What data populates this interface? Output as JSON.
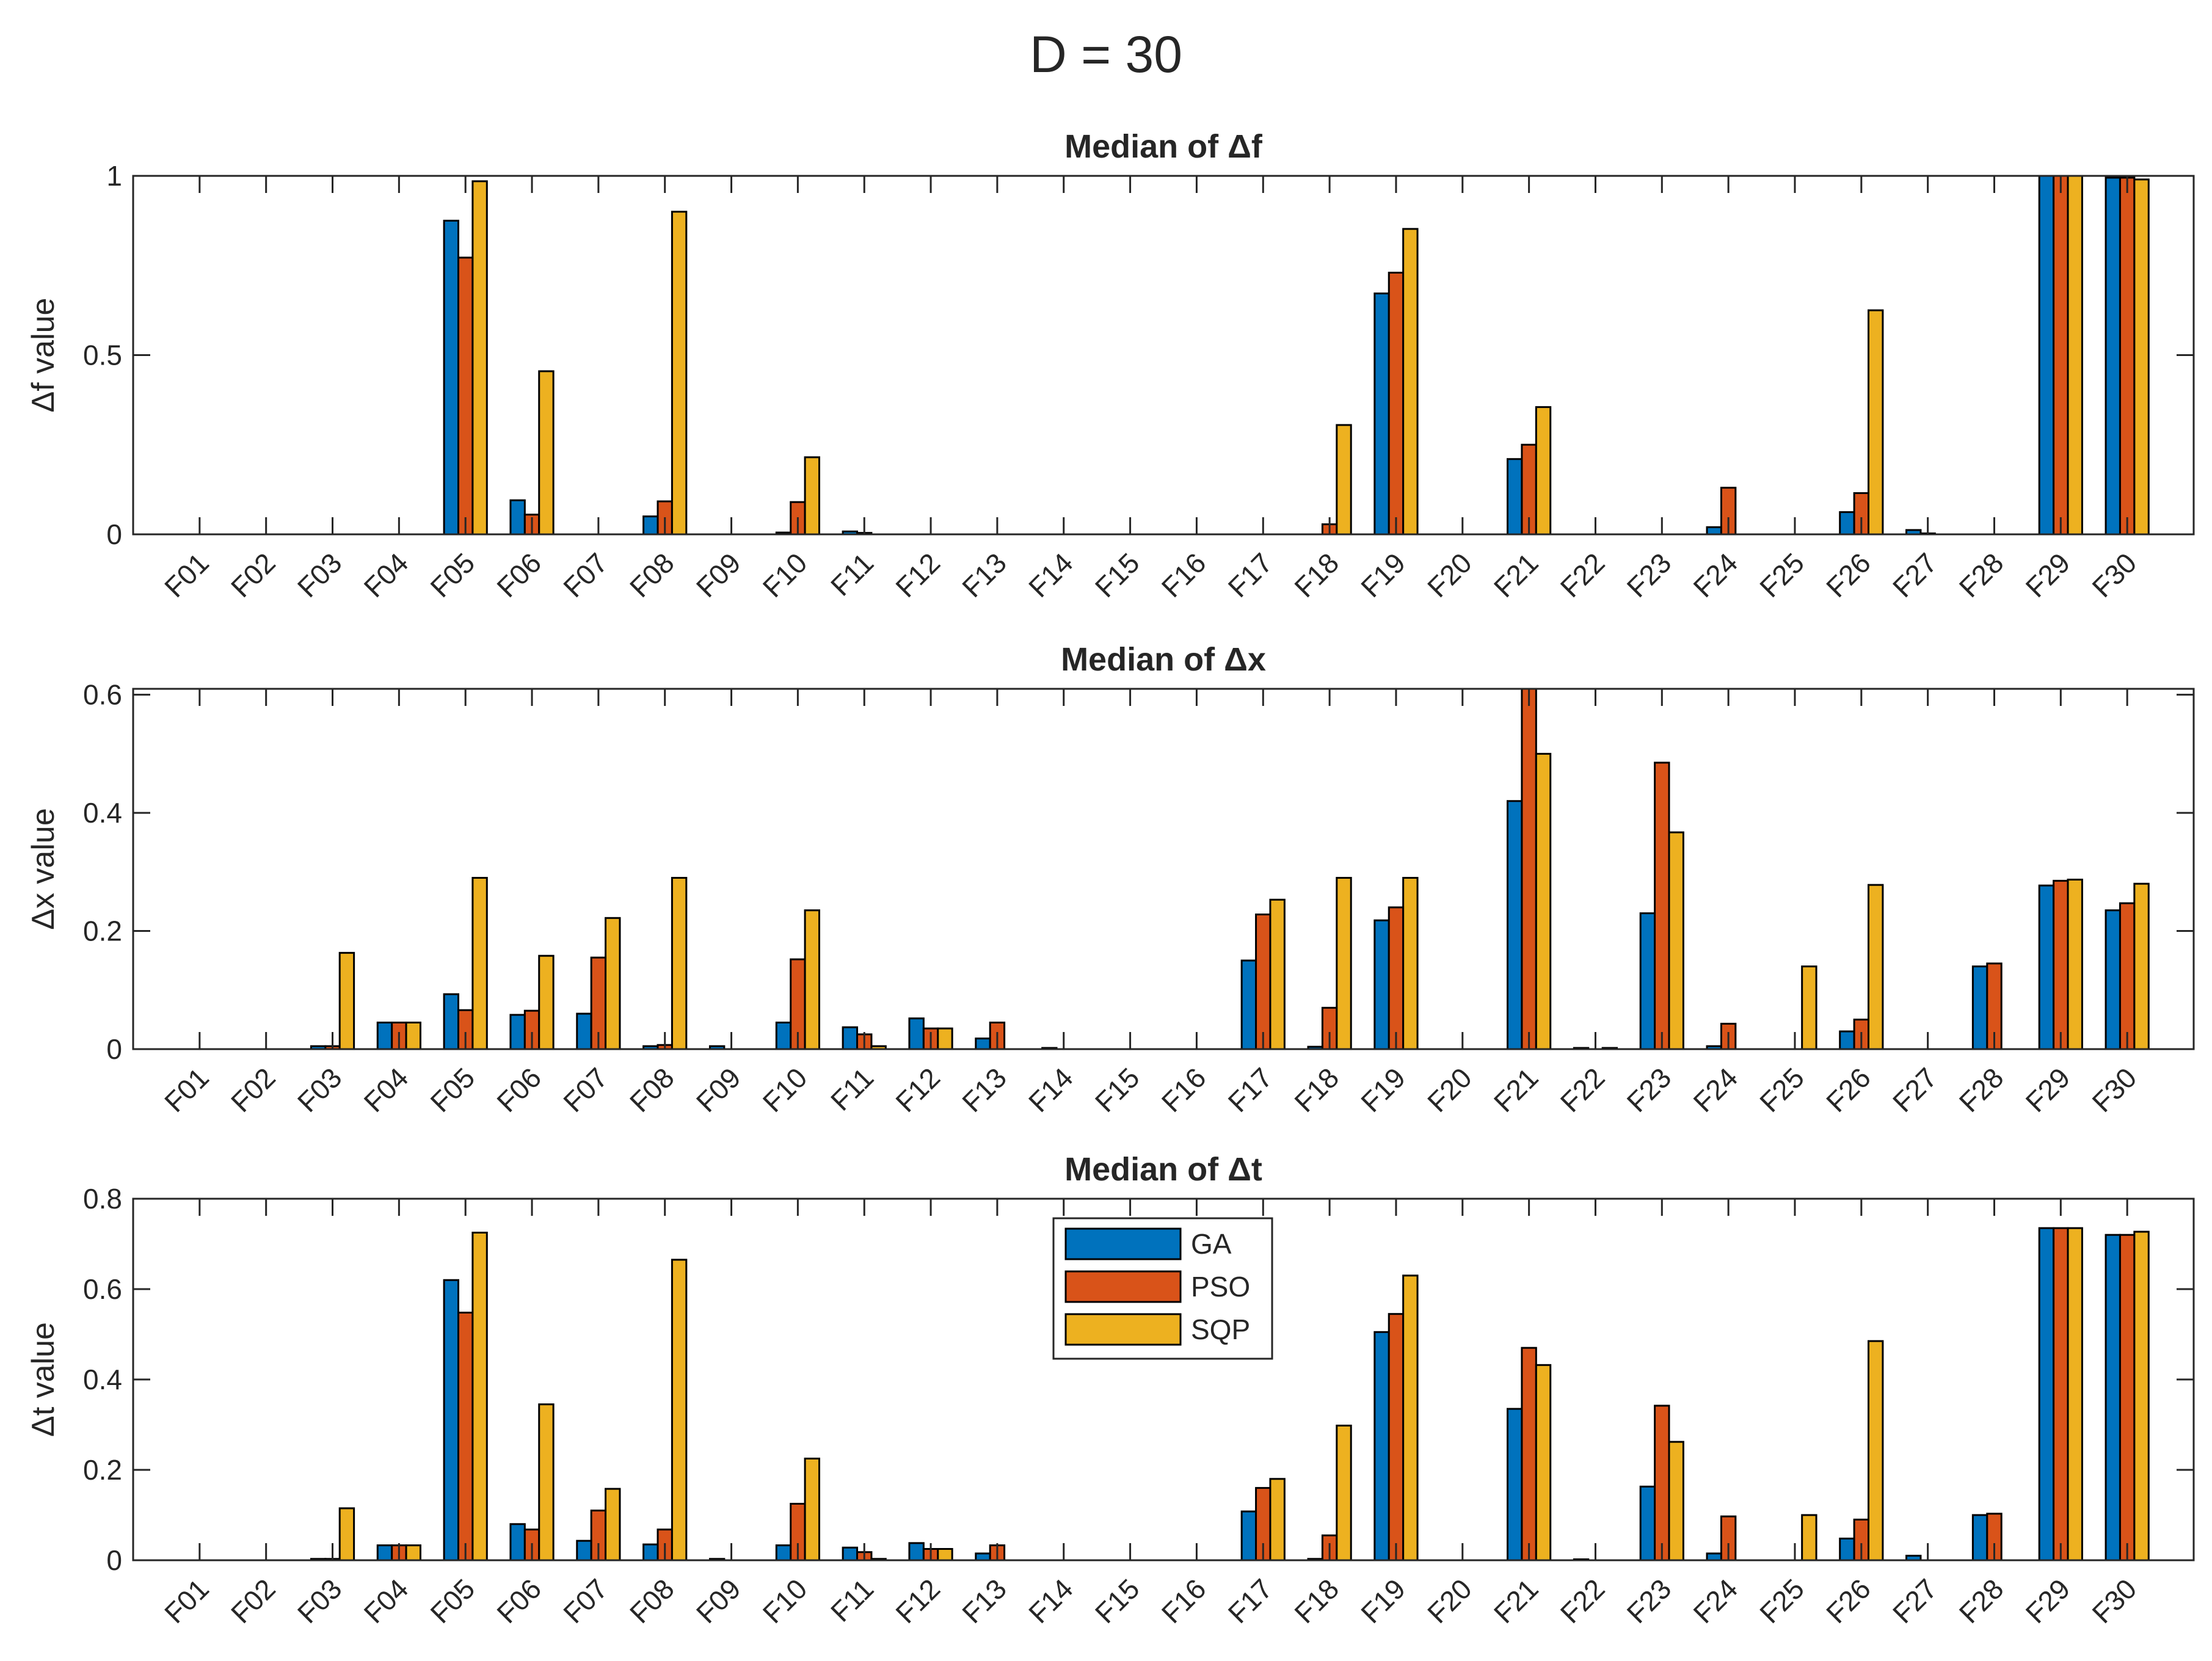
{
  "figure_title": "D = 30",
  "colors": {
    "GA": "#0072BD",
    "PSO": "#D95319",
    "SQP": "#EDB120"
  },
  "legend": [
    "GA",
    "PSO",
    "SQP"
  ],
  "chart_data": [
    {
      "type": "bar",
      "title": "Median of Δf",
      "ylabel": "Δf value",
      "ylim": [
        0,
        1
      ],
      "yticks": [
        0,
        0.5,
        1
      ],
      "ytick_labels": [
        "0",
        "0.5",
        "1"
      ],
      "categories": [
        "F01",
        "F02",
        "F03",
        "F04",
        "F05",
        "F06",
        "F07",
        "F08",
        "F09",
        "F10",
        "F11",
        "F12",
        "F13",
        "F14",
        "F15",
        "F16",
        "F17",
        "F18",
        "F19",
        "F20",
        "F21",
        "F22",
        "F23",
        "F24",
        "F25",
        "F26",
        "F27",
        "F28",
        "F29",
        "F30"
      ],
      "series": [
        {
          "name": "GA",
          "values": [
            0,
            0,
            0,
            0,
            0.875,
            0.095,
            0,
            0.05,
            0,
            0.005,
            0.008,
            0,
            0,
            0,
            0,
            0,
            0,
            0,
            0.672,
            0,
            0.21,
            0,
            0,
            0.02,
            0,
            0.062,
            0.012,
            0,
            1.0,
            0.995
          ]
        },
        {
          "name": "PSO",
          "values": [
            0,
            0,
            0,
            0,
            0.772,
            0.055,
            0,
            0.092,
            0,
            0.09,
            0.004,
            0,
            0,
            0,
            0,
            0,
            0,
            0.028,
            0.73,
            0,
            0.25,
            0,
            0,
            0.13,
            0,
            0.115,
            0.002,
            0,
            1.0,
            0.995
          ]
        },
        {
          "name": "SQP",
          "values": [
            0,
            0,
            0,
            0,
            0.985,
            0.455,
            0,
            0.9,
            0,
            0.215,
            0,
            0,
            0,
            0,
            0,
            0,
            0,
            0.305,
            0.852,
            0,
            0.355,
            0,
            0,
            0,
            0,
            0.625,
            0,
            0,
            1.0,
            0.99
          ]
        }
      ]
    },
    {
      "type": "bar",
      "title": "Median of Δx",
      "ylabel": "Δx value",
      "ylim": [
        0,
        0.61
      ],
      "yticks": [
        0,
        0.2,
        0.4,
        0.6
      ],
      "ytick_labels": [
        "0",
        "0.2",
        "0.4",
        "0.6"
      ],
      "categories": [
        "F01",
        "F02",
        "F03",
        "F04",
        "F05",
        "F06",
        "F07",
        "F08",
        "F09",
        "F10",
        "F11",
        "F12",
        "F13",
        "F14",
        "F15",
        "F16",
        "F17",
        "F18",
        "F19",
        "F20",
        "F21",
        "F22",
        "F23",
        "F24",
        "F25",
        "F26",
        "F27",
        "F28",
        "F29",
        "F30"
      ],
      "series": [
        {
          "name": "GA",
          "values": [
            0,
            0,
            0.005,
            0.045,
            0.093,
            0.058,
            0.06,
            0.005,
            0.005,
            0.045,
            0.037,
            0.052,
            0.018,
            0.002,
            0,
            0,
            0.15,
            0.004,
            0.218,
            0,
            0.42,
            0.002,
            0.23,
            0.005,
            0,
            0.03,
            0,
            0.14,
            0.277,
            0.235
          ]
        },
        {
          "name": "PSO",
          "values": [
            0,
            0,
            0.005,
            0.045,
            0.066,
            0.065,
            0.155,
            0.007,
            0,
            0.152,
            0.025,
            0.035,
            0.045,
            0,
            0,
            0,
            0.228,
            0.07,
            0.24,
            0,
            0.61,
            0,
            0.485,
            0.043,
            0,
            0.05,
            0,
            0.145,
            0.285,
            0.247
          ]
        },
        {
          "name": "SQP",
          "values": [
            0,
            0,
            0.163,
            0.045,
            0.29,
            0.158,
            0.222,
            0.29,
            0,
            0.235,
            0.005,
            0.035,
            0,
            0,
            0,
            0,
            0.253,
            0.29,
            0.29,
            0,
            0.5,
            0.002,
            0.367,
            0,
            0.14,
            0.278,
            0,
            0,
            0.287,
            0.28
          ]
        }
      ]
    },
    {
      "type": "bar",
      "title": "Median of Δt",
      "ylabel": "Δt value",
      "ylim": [
        0,
        0.8
      ],
      "yticks": [
        0,
        0.2,
        0.4,
        0.6,
        0.8
      ],
      "ytick_labels": [
        "0",
        "0.2",
        "0.4",
        "0.6",
        "0.8"
      ],
      "categories": [
        "F01",
        "F02",
        "F03",
        "F04",
        "F05",
        "F06",
        "F07",
        "F08",
        "F09",
        "F10",
        "F11",
        "F12",
        "F13",
        "F14",
        "F15",
        "F16",
        "F17",
        "F18",
        "F19",
        "F20",
        "F21",
        "F22",
        "F23",
        "F24",
        "F25",
        "F26",
        "F27",
        "F28",
        "F29",
        "F30"
      ],
      "series": [
        {
          "name": "GA",
          "values": [
            0,
            0,
            0.003,
            0.033,
            0.62,
            0.08,
            0.043,
            0.035,
            0.003,
            0.033,
            0.028,
            0.038,
            0.015,
            0,
            0,
            0,
            0.108,
            0.003,
            0.505,
            0,
            0.335,
            0.002,
            0.163,
            0.015,
            0,
            0.048,
            0.01,
            0.1,
            0.735,
            0.72
          ]
        },
        {
          "name": "PSO",
          "values": [
            0,
            0,
            0.003,
            0.033,
            0.548,
            0.068,
            0.11,
            0.068,
            0,
            0.125,
            0.018,
            0.025,
            0.033,
            0,
            0,
            0,
            0.16,
            0.055,
            0.545,
            0,
            0.47,
            0,
            0.342,
            0.097,
            0,
            0.09,
            0,
            0.103,
            0.735,
            0.72
          ]
        },
        {
          "name": "SQP",
          "values": [
            0,
            0,
            0.115,
            0.033,
            0.725,
            0.345,
            0.158,
            0.665,
            0,
            0.225,
            0.003,
            0.025,
            0,
            0,
            0,
            0,
            0.18,
            0.298,
            0.63,
            0,
            0.432,
            0,
            0.262,
            0,
            0.1,
            0.485,
            0,
            0,
            0.735,
            0.727
          ]
        }
      ]
    }
  ]
}
